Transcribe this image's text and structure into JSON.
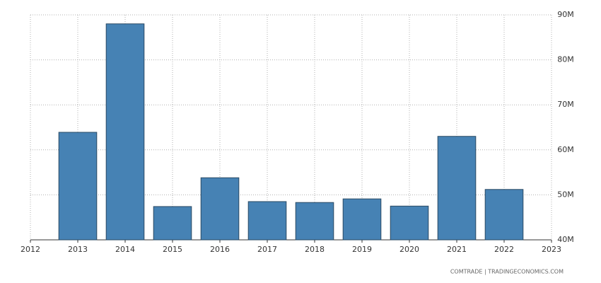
{
  "chart_data": {
    "type": "bar",
    "x": [
      2013,
      2014,
      2015,
      2016,
      2017,
      2018,
      2019,
      2020,
      2021,
      2022
    ],
    "values": [
      63900000,
      88000000,
      47400000,
      53800000,
      48500000,
      48300000,
      49100000,
      47500000,
      63000000,
      51200000
    ],
    "color": "#4682b4",
    "xlim": [
      2012,
      2023
    ],
    "xticks": [
      2012,
      2013,
      2014,
      2015,
      2016,
      2017,
      2018,
      2019,
      2020,
      2021,
      2022,
      2023
    ],
    "ylim": [
      40000000,
      90000000
    ],
    "yticks": [
      {
        "value": 40000000,
        "label": "40M"
      },
      {
        "value": 50000000,
        "label": "50M"
      },
      {
        "value": 60000000,
        "label": "60M"
      },
      {
        "value": 70000000,
        "label": "70M"
      },
      {
        "value": 80000000,
        "label": "80M"
      },
      {
        "value": 90000000,
        "label": "90M"
      }
    ],
    "y_axis_side": "right",
    "grid": true,
    "source": "COMTRADE | TRADINGECONOMICS.COM"
  }
}
